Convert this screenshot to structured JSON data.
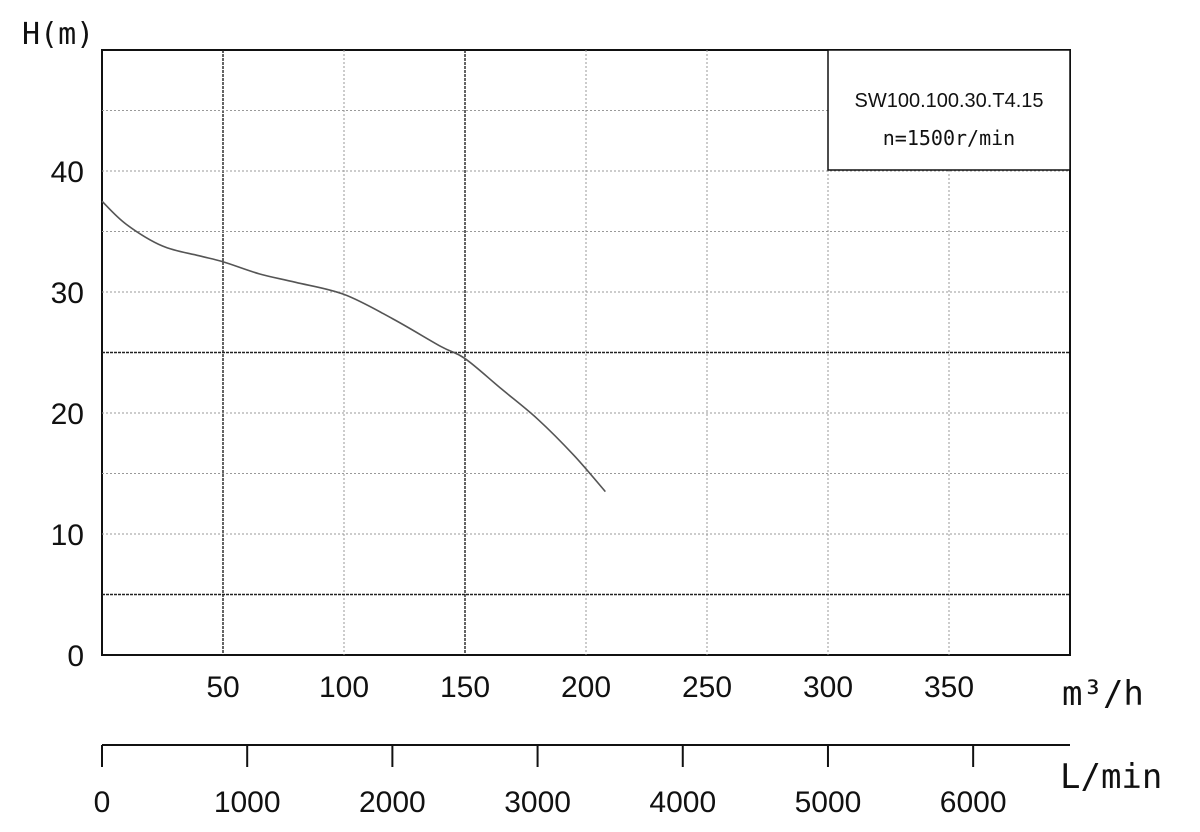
{
  "chart_data": {
    "type": "line",
    "ylabel": "H(m)",
    "xlabel": "m³/h",
    "xlabel_secondary": "L/min",
    "xlim": [
      0,
      400
    ],
    "ylim": [
      0,
      50
    ],
    "x_ticks": [
      50,
      100,
      150,
      200,
      250,
      300,
      350
    ],
    "x_tick_labels": [
      "50",
      "100",
      "150",
      "200",
      "250",
      "300",
      "350"
    ],
    "y_ticks": [
      0,
      10,
      20,
      30,
      40
    ],
    "y_tick_labels": [
      "0",
      "10",
      "20",
      "30",
      "40"
    ],
    "secondary_axis": {
      "xlim": [
        0,
        6667
      ],
      "ticks": [
        0,
        1000,
        2000,
        3000,
        4000,
        5000,
        6000
      ],
      "tick_labels": [
        "0",
        "1000",
        "2000",
        "3000",
        "4000",
        "5000",
        "6000"
      ]
    },
    "grid": true,
    "legend": {
      "placement": "top-right",
      "lines": [
        "SW100.100.30.T4.15",
        "n=1500r/min"
      ]
    },
    "series": [
      {
        "x": [
          0,
          10,
          25,
          40,
          50,
          65,
          80,
          100,
          120,
          140,
          150,
          165,
          180,
          195,
          208
        ],
        "y": [
          37.5,
          35.6,
          33.8,
          33.0,
          32.5,
          31.5,
          30.8,
          29.8,
          27.8,
          25.5,
          24.5,
          22.0,
          19.5,
          16.5,
          13.5
        ]
      }
    ]
  }
}
